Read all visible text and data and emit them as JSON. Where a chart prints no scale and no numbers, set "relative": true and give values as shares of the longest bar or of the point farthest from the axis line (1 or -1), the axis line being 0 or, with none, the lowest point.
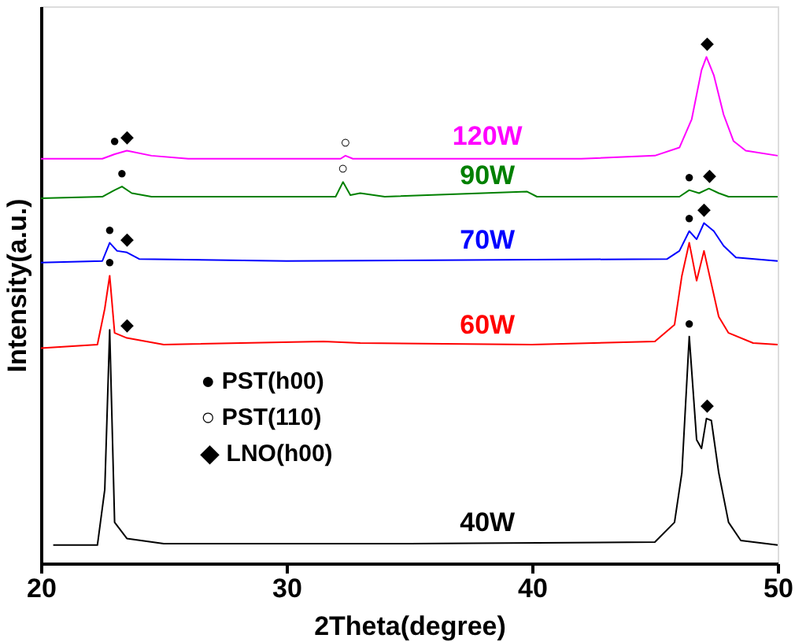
{
  "chart_data": {
    "type": "line",
    "relative": true,
    "xlabel": "2Theta(degree)",
    "ylabel": "Intensity(a.u.)",
    "xlim": [
      20,
      50
    ],
    "xticks": [
      20,
      30,
      40,
      50
    ],
    "tick_labels": "x",
    "grid": false,
    "marker": "none",
    "line_style": "solid",
    "series": [
      {
        "name": "40W",
        "color": "#000000",
        "x": [
          20.5,
          22.3,
          22.6,
          22.8,
          23.0,
          23.5,
          25,
          35,
          45,
          45.8,
          46.1,
          46.4,
          46.7,
          46.9,
          47.1,
          47.3,
          47.6,
          48,
          48.5,
          50
        ],
        "values": [
          0.036,
          0.036,
          0.146,
          0.461,
          0.081,
          0.049,
          0.039,
          0.039,
          0.042,
          0.081,
          0.179,
          0.448,
          0.244,
          0.227,
          0.286,
          0.282,
          0.179,
          0.081,
          0.045,
          0.036
        ]
      },
      {
        "name": "60W",
        "color": "#ff0000",
        "x": [
          20,
          22.3,
          22.6,
          22.8,
          23.0,
          23.5,
          25,
          31.5,
          33,
          40,
          45,
          45.8,
          46.1,
          46.4,
          46.7,
          47.0,
          47.3,
          47.6,
          48,
          49,
          50
        ],
        "values": [
          0.425,
          0.432,
          0.503,
          0.568,
          0.455,
          0.445,
          0.432,
          0.438,
          0.435,
          0.432,
          0.438,
          0.471,
          0.568,
          0.633,
          0.558,
          0.617,
          0.552,
          0.487,
          0.455,
          0.435,
          0.432
        ]
      },
      {
        "name": "70W",
        "color": "#0000ff",
        "x": [
          20,
          22.5,
          22.8,
          23.1,
          23.5,
          24,
          30,
          45.5,
          46.0,
          46.4,
          46.7,
          47.0,
          47.4,
          47.8,
          48.3,
          50
        ],
        "values": [
          0.594,
          0.597,
          0.633,
          0.617,
          0.614,
          0.601,
          0.597,
          0.601,
          0.617,
          0.656,
          0.64,
          0.672,
          0.656,
          0.627,
          0.604,
          0.597
        ]
      },
      {
        "name": "90W",
        "color": "#008000",
        "x": [
          20,
          22.5,
          23.0,
          23.3,
          23.7,
          24.5,
          32.0,
          32.3,
          32.6,
          33.0,
          34,
          39.8,
          40.2,
          46,
          46.4,
          46.8,
          47.2,
          47.6,
          48,
          50
        ],
        "values": [
          0.721,
          0.724,
          0.737,
          0.744,
          0.731,
          0.724,
          0.724,
          0.753,
          0.727,
          0.731,
          0.724,
          0.734,
          0.724,
          0.724,
          0.737,
          0.731,
          0.74,
          0.731,
          0.724,
          0.724
        ]
      },
      {
        "name": "120W",
        "color": "#ff00ff",
        "x": [
          20,
          22.5,
          23.0,
          23.5,
          24.5,
          26,
          32.2,
          32.4,
          32.7,
          42,
          45,
          46,
          46.5,
          46.9,
          47.1,
          47.4,
          47.8,
          48.2,
          48.7,
          50
        ],
        "values": [
          0.799,
          0.799,
          0.808,
          0.815,
          0.805,
          0.799,
          0.799,
          0.805,
          0.799,
          0.799,
          0.805,
          0.821,
          0.877,
          0.974,
          1,
          0.964,
          0.886,
          0.834,
          0.815,
          0.805
        ]
      }
    ],
    "annotations": [
      "● PST(h00)",
      "○ PST(110)",
      "◆ LNO(h00)",
      {
        "text": "●",
        "x": 23.0,
        "y": 0.808
      },
      {
        "text": "◆",
        "x": 23.5,
        "y": 0.815
      },
      {
        "text": "○",
        "x": 32.4,
        "y": 0.805
      },
      {
        "text": "◆",
        "x": 47.1,
        "y": 1
      },
      {
        "text": "●",
        "x": 23.3,
        "y": 0.744
      },
      {
        "text": "○",
        "x": 32.3,
        "y": 0.753
      },
      {
        "text": "●",
        "x": 46.4,
        "y": 0.737
      },
      {
        "text": "◆",
        "x": 47.2,
        "y": 0.74
      },
      {
        "text": "●",
        "x": 22.8,
        "y": 0.633
      },
      {
        "text": "◆",
        "x": 23.5,
        "y": 0.614
      },
      {
        "text": "●",
        "x": 46.4,
        "y": 0.656
      },
      {
        "text": "◆",
        "x": 47.0,
        "y": 0.672
      },
      {
        "text": "●",
        "x": 22.8,
        "y": 0.568
      },
      {
        "text": "◆",
        "x": 23.5,
        "y": 0.445
      },
      {
        "text": "●",
        "x": 46.4,
        "y": 0.448
      },
      {
        "text": "◆",
        "x": 47.1,
        "y": 0.286
      }
    ]
  }
}
